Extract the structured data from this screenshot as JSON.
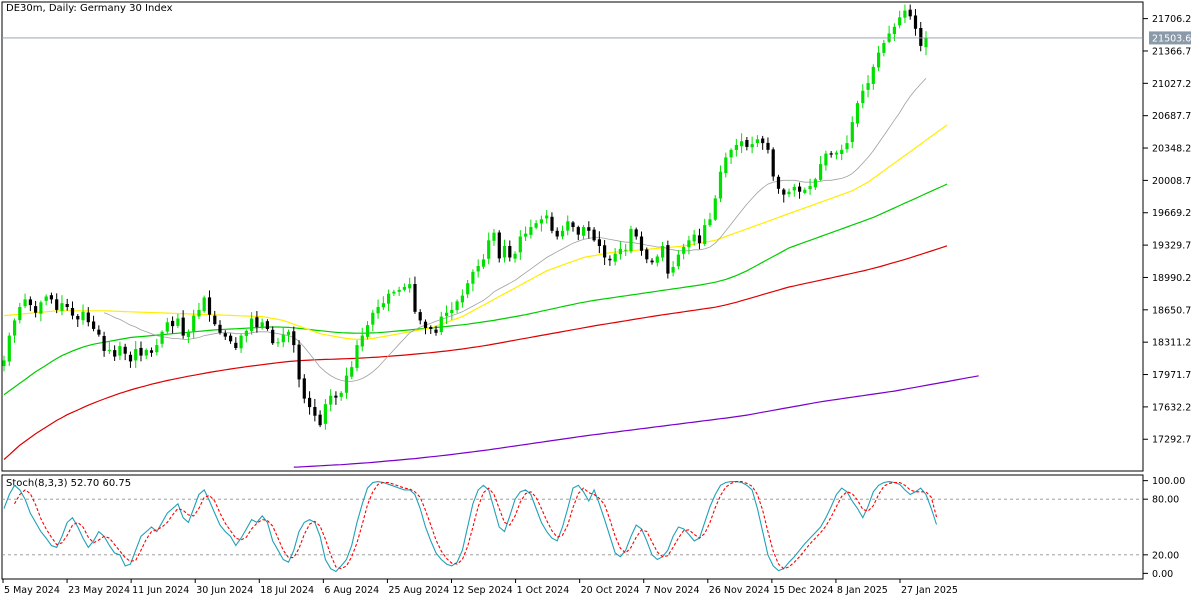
{
  "chart_title": "DE30m, Daily:  Germany 30 Index",
  "stoch_label": "Stoch(8,3,3) 52.70 60.75",
  "colors": {
    "bull": "#00e000",
    "bear": "#000000",
    "ma_fast": "#a0a0a0",
    "ma_yellow": "#ffee00",
    "ma_green": "#00cc00",
    "ma_red": "#dd0000",
    "ma_purple": "#7a00cc",
    "stoch_main": "#20a0b8",
    "stoch_signal": "#ff0000",
    "grid": "#000000"
  },
  "chart_data": {
    "type": "line",
    "price_axis": {
      "ylim": [
        16970,
        21870
      ],
      "ticks": [
        "21706.2",
        "21366.7",
        "21027.2",
        "20687.7",
        "20348.2",
        "20008.7",
        "19669.2",
        "19329.7",
        "18990.2",
        "18650.7",
        "18311.2",
        "17971.7",
        "17632.2",
        "17292.7"
      ],
      "current_price": "21503.6",
      "current_price_value": 21503.6
    },
    "stoch_axis": {
      "ylim": [
        -5,
        105
      ],
      "ticks": [
        "100.00",
        "80.00",
        "20.00",
        "0.00"
      ],
      "levels": [
        80,
        20
      ]
    },
    "x_ticks": [
      "5 May 2024",
      "23 May 2024",
      "11 Jun 2024",
      "30 Jun 2024",
      "18 Jul 2024",
      "6 Aug 2024",
      "25 Aug 2024",
      "12 Sep 2024",
      "1 Oct 2024",
      "20 Oct 2024",
      "7 Nov 2024",
      "26 Nov 2024",
      "15 Dec 2024",
      "8 Jan 2025",
      "27 Jan 2025"
    ],
    "closes": [
      18120,
      18380,
      18540,
      18680,
      18760,
      18700,
      18620,
      18730,
      18790,
      18760,
      18650,
      18720,
      18680,
      18590,
      18550,
      18630,
      18520,
      18450,
      18390,
      18220,
      18230,
      18160,
      18270,
      18190,
      18110,
      18240,
      18170,
      18230,
      18200,
      18280,
      18420,
      18520,
      18480,
      18560,
      18380,
      18420,
      18590,
      18650,
      18780,
      18600,
      18500,
      18410,
      18370,
      18320,
      18250,
      18380,
      18430,
      18560,
      18470,
      18520,
      18450,
      18300,
      18310,
      18390,
      18420,
      18280,
      17920,
      17720,
      17630,
      17540,
      17440,
      17660,
      17750,
      17730,
      17780,
      17960,
      18050,
      18280,
      18380,
      18490,
      18620,
      18680,
      18720,
      18820,
      18840,
      18860,
      18890,
      18920,
      18630,
      18540,
      18460,
      18450,
      18410,
      18580,
      18620,
      18650,
      18740,
      18800,
      18930,
      19050,
      19110,
      19180,
      19380,
      19460,
      19190,
      19320,
      19200,
      19240,
      19420,
      19450,
      19520,
      19560,
      19600,
      19640,
      19480,
      19420,
      19480,
      19580,
      19520,
      19440,
      19520,
      19480,
      19380,
      19320,
      19200,
      19170,
      19240,
      19290,
      19280,
      19500,
      19420,
      19270,
      19180,
      19150,
      19210,
      19320,
      19030,
      19100,
      19230,
      19310,
      19380,
      19440,
      19350,
      19540,
      19600,
      19820,
      20100,
      20250,
      20330,
      20380,
      20420,
      20360,
      20390,
      20440,
      20400,
      20330,
      20050,
      19920,
      19860,
      19890,
      19940,
      19890,
      19910,
      19950,
      20020,
      20180,
      20290,
      20280,
      20300,
      20330,
      20400,
      20620,
      20820,
      20950,
      21030,
      21200,
      21350,
      21450,
      21550,
      21620,
      21720,
      21790,
      21730,
      21600,
      21420,
      21503.6
    ],
    "ma_fast": [
      null,
      null,
      null,
      null,
      null,
      null,
      null,
      null,
      null,
      null,
      null,
      null,
      null,
      null,
      null,
      null,
      null,
      null,
      null,
      18620,
      18600,
      18570,
      18550,
      18520,
      18490,
      18470,
      18440,
      18420,
      18400,
      18380,
      18370,
      18360,
      18350,
      18350,
      18340,
      18340,
      18350,
      18360,
      18380,
      18390,
      18400,
      18410,
      18410,
      18410,
      18400,
      18400,
      18400,
      18410,
      18420,
      18420,
      18420,
      18410,
      18400,
      18390,
      18380,
      18360,
      18320,
      18260,
      18190,
      18120,
      18050,
      18000,
      17960,
      17930,
      17910,
      17900,
      17900,
      17910,
      17930,
      17960,
      18000,
      18050,
      18110,
      18170,
      18230,
      18290,
      18350,
      18410,
      18440,
      18470,
      18490,
      18510,
      18530,
      18550,
      18570,
      18590,
      18610,
      18630,
      18660,
      18690,
      18720,
      18750,
      18790,
      18840,
      18870,
      18900,
      18930,
      18960,
      19000,
      19040,
      19080,
      19120,
      19160,
      19200,
      19230,
      19260,
      19290,
      19320,
      19350,
      19370,
      19390,
      19400,
      19410,
      19410,
      19400,
      19390,
      19380,
      19370,
      19360,
      19360,
      19350,
      19340,
      19330,
      19320,
      19310,
      19310,
      19290,
      19280,
      19270,
      19270,
      19270,
      19280,
      19280,
      19290,
      19310,
      19350,
      19410,
      19480,
      19550,
      19620,
      19690,
      19760,
      19820,
      19880,
      19930,
      19970,
      19990,
      20000,
      20010,
      20010,
      20010,
      20000,
      19990,
      19990,
      19990,
      20000,
      20010,
      20010,
      20020,
      20030,
      20050,
      20080,
      20130,
      20190,
      20250,
      20320,
      20400,
      20480,
      20560,
      20640,
      20720,
      20810,
      20890,
      20960,
      21020,
      21080
    ],
    "ma_yellow": [
      18590,
      18595,
      18600,
      18605,
      18610,
      18615,
      18620,
      18625,
      18630,
      18635,
      18640,
      18640,
      18640,
      18640,
      18640,
      18640,
      18640,
      18640,
      18640,
      18640,
      18638,
      18636,
      18634,
      18632,
      18630,
      18628,
      18626,
      18624,
      18622,
      18620,
      18618,
      18616,
      18614,
      18612,
      18610,
      18608,
      18606,
      18604,
      18602,
      18600,
      18598,
      18596,
      18594,
      18592,
      18590,
      18588,
      18586,
      18584,
      18582,
      18580,
      18570,
      18560,
      18550,
      18540,
      18520,
      18500,
      18480,
      18460,
      18440,
      18420,
      18400,
      18390,
      18380,
      18370,
      18360,
      18350,
      18345,
      18340,
      18340,
      18345,
      18350,
      18360,
      18370,
      18380,
      18390,
      18400,
      18410,
      18420,
      18430,
      18440,
      18450,
      18460,
      18480,
      18500,
      18520,
      18540,
      18560,
      18580,
      18610,
      18640,
      18670,
      18700,
      18730,
      18760,
      18790,
      18820,
      18850,
      18880,
      18910,
      18940,
      18970,
      19000,
      19030,
      19060,
      19080,
      19100,
      19120,
      19140,
      19160,
      19180,
      19200,
      19210,
      19220,
      19230,
      19240,
      19250,
      19255,
      19260,
      19265,
      19270,
      19275,
      19280,
      19285,
      19290,
      19295,
      19300,
      19305,
      19310,
      19315,
      19320,
      19330,
      19340,
      19350,
      19360,
      19370,
      19380,
      19400,
      19420,
      19440,
      19460,
      19480,
      19500,
      19520,
      19540,
      19560,
      19580,
      19600,
      19620,
      19640,
      19660,
      19680,
      19700,
      19720,
      19740,
      19760,
      19780,
      19800,
      19820,
      19840,
      19860,
      19880,
      19900,
      19930,
      19960,
      19990,
      20030,
      20070,
      20110,
      20150,
      20190,
      20230,
      20270,
      20310,
      20350,
      20390,
      20430,
      20470,
      20510,
      20550,
      20590
    ],
    "ma_green": [
      17760,
      17800,
      17840,
      17880,
      17920,
      17960,
      18000,
      18035,
      18070,
      18105,
      18140,
      18170,
      18195,
      18220,
      18240,
      18260,
      18275,
      18290,
      18300,
      18310,
      18320,
      18330,
      18340,
      18350,
      18360,
      18365,
      18370,
      18375,
      18380,
      18385,
      18390,
      18395,
      18400,
      18405,
      18410,
      18415,
      18420,
      18425,
      18430,
      18435,
      18440,
      18443,
      18446,
      18449,
      18452,
      18455,
      18458,
      18461,
      18464,
      18467,
      18470,
      18470,
      18470,
      18468,
      18466,
      18462,
      18456,
      18450,
      18444,
      18438,
      18432,
      18426,
      18420,
      18415,
      18411,
      18408,
      18406,
      18405,
      18405,
      18406,
      18408,
      18411,
      18415,
      18420,
      18425,
      18430,
      18435,
      18440,
      18445,
      18450,
      18455,
      18460,
      18465,
      18470,
      18476,
      18482,
      18488,
      18494,
      18500,
      18508,
      18516,
      18524,
      18532,
      18540,
      18550,
      18560,
      18570,
      18580,
      18590,
      18600,
      18612,
      18624,
      18636,
      18648,
      18660,
      18672,
      18684,
      18696,
      18708,
      18720,
      18730,
      18740,
      18750,
      18758,
      18766,
      18774,
      18782,
      18790,
      18798,
      18806,
      18814,
      18822,
      18830,
      18838,
      18846,
      18854,
      18862,
      18870,
      18878,
      18886,
      18894,
      18902,
      18910,
      18920,
      18930,
      18940,
      18955,
      18970,
      18990,
      19010,
      19035,
      19060,
      19090,
      19120,
      19150,
      19180,
      19210,
      19240,
      19270,
      19300,
      19320,
      19340,
      19360,
      19380,
      19400,
      19420,
      19440,
      19460,
      19480,
      19500,
      19520,
      19540,
      19560,
      19580,
      19600,
      19620,
      19645,
      19670,
      19695,
      19720,
      19745,
      19770,
      19795,
      19820,
      19845,
      19870,
      19895,
      19920,
      19945,
      19970
    ],
    "ma_red": [
      17080,
      17130,
      17180,
      17230,
      17270,
      17310,
      17350,
      17385,
      17420,
      17455,
      17490,
      17520,
      17550,
      17575,
      17600,
      17625,
      17650,
      17672,
      17694,
      17715,
      17735,
      17755,
      17775,
      17792,
      17809,
      17825,
      17840,
      17855,
      17870,
      17883,
      17896,
      17909,
      17921,
      17932,
      17943,
      17954,
      17964,
      17974,
      17984,
      17994,
      18003,
      18012,
      18021,
      18030,
      18038,
      18046,
      18054,
      18061,
      18068,
      18075,
      18082,
      18089,
      18096,
      18102,
      18108,
      18113,
      18117,
      18120,
      18123,
      18126,
      18128,
      18130,
      18132,
      18134,
      18136,
      18138,
      18140,
      18142,
      18145,
      18148,
      18151,
      18155,
      18159,
      18163,
      18167,
      18171,
      18176,
      18181,
      18186,
      18191,
      18196,
      18201,
      18207,
      18213,
      18219,
      18226,
      18233,
      18240,
      18248,
      18256,
      18264,
      18273,
      18282,
      18292,
      18302,
      18312,
      18322,
      18332,
      18342,
      18352,
      18362,
      18372,
      18382,
      18392,
      18402,
      18412,
      18422,
      18432,
      18442,
      18452,
      18462,
      18472,
      18482,
      18491,
      18500,
      18509,
      18518,
      18527,
      18536,
      18545,
      18554,
      18563,
      18572,
      18581,
      18590,
      18598,
      18606,
      18614,
      18622,
      18630,
      18638,
      18646,
      18654,
      18662,
      18670,
      18678,
      18690,
      18702,
      18716,
      18730,
      18746,
      18762,
      18778,
      18794,
      18810,
      18826,
      18842,
      18858,
      18874,
      18890,
      18902,
      18914,
      18926,
      18938,
      18950,
      18962,
      18974,
      18986,
      18998,
      19010,
      19022,
      19034,
      19046,
      19058,
      19072,
      19086,
      19100,
      19116,
      19132,
      19148,
      19164,
      19180,
      19196,
      19214,
      19232,
      19250,
      19268,
      19286,
      19304,
      19322
    ],
    "ma_purple": [
      null,
      null,
      null,
      null,
      null,
      null,
      null,
      null,
      null,
      null,
      null,
      null,
      null,
      null,
      null,
      null,
      null,
      null,
      null,
      null,
      null,
      null,
      null,
      null,
      null,
      null,
      null,
      null,
      null,
      null,
      null,
      null,
      null,
      null,
      null,
      null,
      null,
      null,
      null,
      null,
      null,
      null,
      null,
      null,
      null,
      null,
      null,
      null,
      null,
      null,
      null,
      null,
      null,
      null,
      null,
      17000,
      17002,
      17005,
      17008,
      17011,
      17014,
      17017,
      17020,
      17023,
      17026,
      17030,
      17034,
      17038,
      17042,
      17046,
      17050,
      17055,
      17060,
      17065,
      17070,
      17075,
      17080,
      17085,
      17090,
      17096,
      17102,
      17108,
      17114,
      17120,
      17126,
      17133,
      17140,
      17147,
      17154,
      17161,
      17168,
      17175,
      17182,
      17190,
      17198,
      17206,
      17214,
      17222,
      17230,
      17238,
      17246,
      17254,
      17262,
      17270,
      17278,
      17286,
      17294,
      17302,
      17310,
      17318,
      17326,
      17333,
      17340,
      17347,
      17354,
      17361,
      17368,
      17375,
      17382,
      17389,
      17396,
      17403,
      17410,
      17417,
      17424,
      17431,
      17438,
      17445,
      17452,
      17459,
      17466,
      17473,
      17480,
      17487,
      17494,
      17501,
      17508,
      17515,
      17522,
      17530,
      17538,
      17546,
      17556,
      17566,
      17576,
      17586,
      17596,
      17606,
      17616,
      17626,
      17636,
      17646,
      17656,
      17666,
      17676,
      17686,
      17694,
      17702,
      17710,
      17718,
      17726,
      17734,
      17742,
      17750,
      17758,
      17766,
      17774,
      17782,
      17790,
      17798,
      17808,
      17818,
      17828,
      17838,
      17848,
      17858,
      17868,
      17878,
      17888,
      17898,
      17908,
      17918,
      17928,
      17938,
      17948,
      17958
    ],
    "stoch_k": [
      70,
      85,
      95,
      90,
      80,
      65,
      55,
      45,
      38,
      30,
      28,
      40,
      55,
      60,
      50,
      38,
      28,
      35,
      45,
      40,
      30,
      22,
      20,
      8,
      10,
      25,
      40,
      45,
      50,
      45,
      55,
      65,
      70,
      75,
      60,
      55,
      70,
      85,
      90,
      78,
      65,
      52,
      45,
      40,
      30,
      38,
      48,
      58,
      55,
      62,
      55,
      35,
      25,
      15,
      12,
      25,
      45,
      55,
      58,
      55,
      40,
      15,
      5,
      2,
      8,
      15,
      30,
      55,
      75,
      92,
      98,
      99,
      98,
      96,
      94,
      92,
      90,
      90,
      85,
      70,
      50,
      35,
      22,
      15,
      10,
      8,
      12,
      25,
      50,
      75,
      90,
      95,
      90,
      70,
      50,
      45,
      62,
      80,
      88,
      90,
      85,
      70,
      55,
      45,
      38,
      35,
      50,
      70,
      92,
      95,
      88,
      78,
      90,
      75,
      58,
      40,
      22,
      18,
      25,
      40,
      52,
      48,
      35,
      20,
      15,
      18,
      25,
      40,
      50,
      48,
      42,
      35,
      38,
      55,
      72,
      85,
      95,
      98,
      99,
      99,
      98,
      95,
      90,
      70,
      45,
      20,
      8,
      3,
      5,
      12,
      18,
      25,
      32,
      38,
      44,
      50,
      60,
      72,
      85,
      92,
      88,
      78,
      70,
      60,
      72,
      88,
      95,
      98,
      99,
      98,
      96,
      90,
      85,
      88,
      92,
      85,
      70,
      52.7
    ],
    "stoch_d": [
      null,
      null,
      75,
      85,
      90,
      86,
      74,
      59,
      48,
      39,
      31,
      33,
      41,
      52,
      55,
      50,
      39,
      33,
      36,
      40,
      38,
      31,
      24,
      17,
      13,
      14,
      25,
      37,
      45,
      47,
      50,
      55,
      63,
      70,
      68,
      63,
      62,
      70,
      82,
      84,
      78,
      65,
      54,
      46,
      38,
      36,
      39,
      48,
      54,
      58,
      57,
      51,
      38,
      25,
      17,
      17,
      27,
      42,
      53,
      56,
      51,
      37,
      20,
      7,
      5,
      8,
      18,
      33,
      53,
      74,
      88,
      96,
      98,
      98,
      96,
      94,
      92,
      91,
      88,
      82,
      68,
      52,
      36,
      24,
      16,
      11,
      10,
      15,
      29,
      50,
      72,
      87,
      92,
      85,
      70,
      55,
      52,
      62,
      77,
      86,
      88,
      82,
      70,
      57,
      46,
      39,
      41,
      52,
      71,
      86,
      92,
      87,
      85,
      81,
      74,
      58,
      40,
      27,
      22,
      28,
      39,
      47,
      45,
      34,
      23,
      18,
      19,
      28,
      38,
      46,
      47,
      42,
      38,
      43,
      55,
      71,
      84,
      93,
      97,
      99,
      99,
      97,
      94,
      85,
      68,
      45,
      24,
      10,
      5,
      7,
      12,
      18,
      25,
      32,
      38,
      44,
      51,
      61,
      72,
      83,
      88,
      86,
      79,
      69,
      67,
      73,
      85,
      94,
      97,
      98,
      98,
      95,
      90,
      88,
      88,
      88,
      82,
      60.75
    ]
  }
}
